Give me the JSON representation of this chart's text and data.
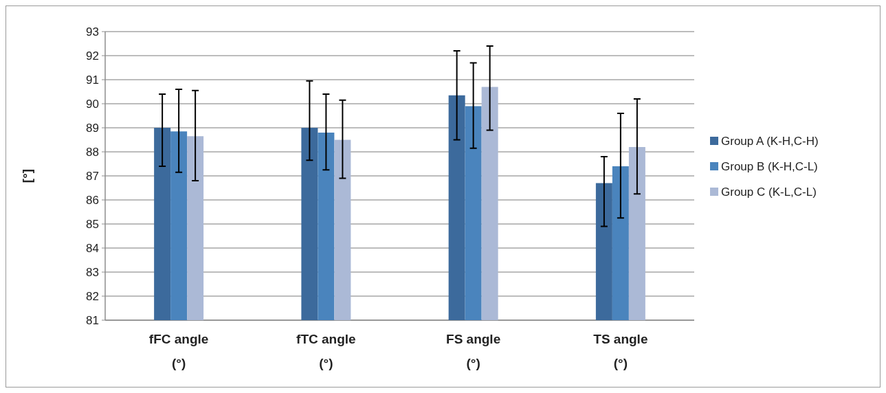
{
  "chart_data": {
    "type": "bar",
    "ylabel": "[°]",
    "categories": [
      "fFC angle (°)",
      "fTC angle (°)",
      "FS angle (°)",
      "TS angle (°)"
    ],
    "series": [
      {
        "name": "Group A (K-H,C-H)",
        "color": "#3c6a9c",
        "values": [
          89.0,
          89.0,
          90.35,
          86.7
        ],
        "errors": [
          [
            87.4,
            90.4
          ],
          [
            87.65,
            90.95
          ],
          [
            88.5,
            92.2
          ],
          [
            84.9,
            87.8
          ]
        ]
      },
      {
        "name": "Group B (K-H,C-L)",
        "color": "#4a84bd",
        "values": [
          88.85,
          88.8,
          89.9,
          87.4
        ],
        "errors": [
          [
            87.15,
            90.6
          ],
          [
            87.25,
            90.4
          ],
          [
            88.15,
            91.7
          ],
          [
            85.25,
            89.6
          ]
        ]
      },
      {
        "name": "Group C (K-L,C-L)",
        "color": "#abb9d6",
        "values": [
          88.65,
          88.5,
          90.7,
          88.2
        ],
        "errors": [
          [
            86.8,
            90.55
          ],
          [
            86.9,
            90.15
          ],
          [
            88.9,
            92.4
          ],
          [
            86.25,
            90.2
          ]
        ]
      }
    ],
    "ylim": [
      81,
      93
    ],
    "yticks": [
      81,
      82,
      83,
      84,
      85,
      86,
      87,
      88,
      89,
      90,
      91,
      92,
      93
    ],
    "grid": "y",
    "legend": "right"
  }
}
